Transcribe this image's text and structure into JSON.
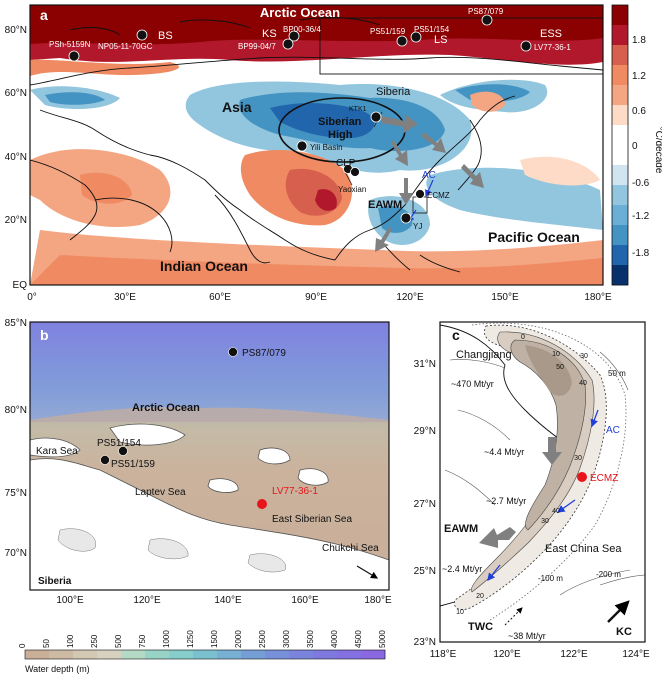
{
  "panel_a": {
    "label": "a",
    "title": "Arctic Ocean",
    "y_ticks": [
      "80°N",
      "60°N",
      "40°N",
      "20°N",
      "EQ"
    ],
    "x_ticks": [
      "0°",
      "30°E",
      "60°E",
      "90°E",
      "120°E",
      "150°E",
      "180°E"
    ],
    "regions": {
      "bs": "BS",
      "ks": "KS",
      "ls": "LS",
      "ess": "ESS",
      "asia": "Asia",
      "siberia": "Siberia",
      "siberian_high_1": "Siberian",
      "siberian_high_2": "High",
      "indian_ocean": "Indian Ocean",
      "pacific_ocean": "Pacific Ocean",
      "eawm": "EAWM",
      "clp": "CLP",
      "ac": "AC"
    },
    "sites": {
      "psh": "PSh-5159N",
      "np05": "NP05-11-70GC",
      "bp00": "BP00-36/4",
      "bp99": "BP99-04/7",
      "ps51_159": "PS51/159",
      "ps51_154": "PS51/154",
      "ps87": "PS87/079",
      "lv77": "LV77-36-1",
      "ktk1": "KTK1",
      "yili": "Yili Basin",
      "yaoxian": "Yaoxian",
      "ecmz": "ECMZ",
      "yj": "YJ"
    },
    "colorbar": {
      "unit": "°C/decade",
      "ticks": [
        "1.8",
        "1.2",
        "0.6",
        "0",
        "-0.6",
        "-1.2",
        "-1.8"
      ],
      "colors": [
        "#8b0000",
        "#b2182b",
        "#d6604d",
        "#ef8a62",
        "#f4a582",
        "#fddbc7",
        "#ffffff",
        "#ffffff",
        "#d1e5f0",
        "#92c5de",
        "#6baed6",
        "#4393c3",
        "#2166ac",
        "#08306b"
      ]
    }
  },
  "panel_b": {
    "label": "b",
    "y_ticks": [
      "85°N",
      "80°N",
      "75°N",
      "70°N"
    ],
    "x_ticks": [
      "100°E",
      "120°E",
      "140°E",
      "160°E",
      "180°E"
    ],
    "labels": {
      "arctic": "Arctic Ocean",
      "kara": "Kara Sea",
      "laptev": "Laptev Sea",
      "ess": "East Siberian Sea",
      "chukchi": "Chukchi Sea",
      "siberia": "Siberia"
    },
    "sites": {
      "ps87": "PS87/079",
      "ps51_154": "PS51/154",
      "ps51_159": "PS51/159",
      "lv77": "LV77-36-1"
    },
    "depth_ticks": [
      "0",
      "50",
      "100",
      "250",
      "500",
      "750",
      "1000",
      "1250",
      "1500",
      "2000",
      "2500",
      "3000",
      "3500",
      "4000",
      "4500",
      "5000"
    ],
    "depth_title": "Water depth (m)",
    "depth_colors": [
      "#c9ae98",
      "#ccbaa5",
      "#d2c8b4",
      "#d6d2bf",
      "#b4d9c5",
      "#98d3c8",
      "#86cdcc",
      "#7bc0cf",
      "#77b0d2",
      "#759ed6",
      "#7890d9",
      "#7b84dc",
      "#7f78de",
      "#8470e0",
      "#8a68e2"
    ]
  },
  "panel_c": {
    "label": "c",
    "y_ticks": [
      "31°N",
      "29°N",
      "27°N",
      "25°N",
      "23°N"
    ],
    "x_ticks": [
      "118°E",
      "120°E",
      "122°E",
      "124°E"
    ],
    "labels": {
      "changjiang": "Changjiang",
      "flux1": "~470 Mt/yr",
      "flux2": "~4.4 Mt/yr",
      "flux3": "~2.7 Mt/yr",
      "flux4": "~2.4 Mt/yr",
      "flux5": "~38 Mt/yr",
      "ac": "AC",
      "ecmz": "ECMZ",
      "eawm": "EAWM",
      "ecs": "East China Sea",
      "twc": "TWC",
      "kc": "KC",
      "iso50m": "50 m",
      "iso100m": "-100 m",
      "iso200m": "-200 m"
    },
    "contours": [
      "0",
      "10",
      "30",
      "50",
      "40",
      "30",
      "30",
      "40",
      "20",
      "10"
    ]
  }
}
